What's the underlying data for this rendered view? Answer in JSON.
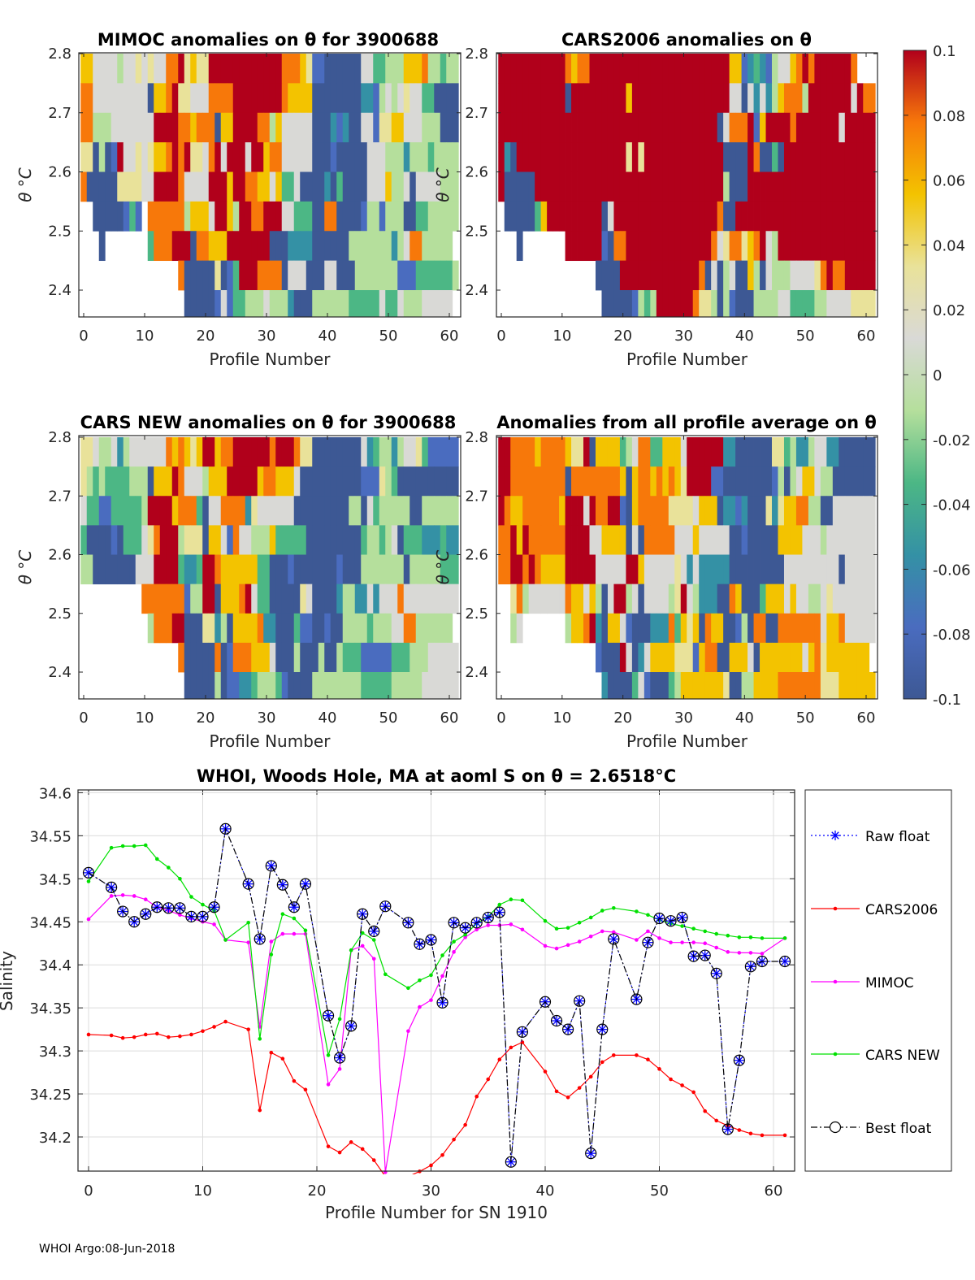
{
  "levels": {
    "0": "#3d5894",
    "1": "#4a6cbf",
    "2": "#3491a5",
    "3": "#4cb785",
    "4": "#b5df9c",
    "5": "#d9d9d6",
    "6": "#e9e29a",
    "7": "#f3c300",
    "8": "#f7780a",
    "9": "#b1001b"
  },
  "colorbar": {
    "ticks": [
      "0.1",
      "0.08",
      "0.06",
      "0.04",
      "0.02",
      "0",
      "-0.02",
      "-0.04",
      "-0.06",
      "-0.08",
      "-0.1"
    ],
    "range": [
      -0.1,
      0.1
    ]
  },
  "chart_data": [
    {
      "type": "heatmap",
      "title": "MIMOC anomalies on θ  for 3900688",
      "xlabel": "Profile Number",
      "ylabel": "θ °C",
      "xticks": [
        "0",
        "10",
        "20",
        "30",
        "40",
        "50",
        "60"
      ],
      "yticks": [
        "2.8",
        "2.7",
        "2.6",
        "2.5",
        "2.4"
      ],
      "xlim": [
        -0.8,
        61.9
      ],
      "ylim": [
        2.35,
        2.8
      ],
      "row_theta_top": [
        2.8,
        2.75,
        2.7,
        2.65,
        2.6,
        2.55,
        2.5,
        2.45,
        2.4
      ],
      "rows": [
        "77555545565655889676699999999999988876110000005533444777844344",
        "88555555555077896655588889999999987777000000002214545655330000",
        "88444555555599998878880779999884755555000212005516677555444000",
        "66040195565677898966589599959978855555000100000555444244434444",
        "80000066665599998555599979988775733500002030000555744505555444",
        "..00000131.88888847775997499889995533300880000144144400334444444",
        "...0.......38889990887779999999000222200000044444442458844444",
        "................80000060139998888055500055000444444411133333344",
        ".................00000151334445444200044444433333533544455555"
      ]
    },
    {
      "type": "heatmap",
      "title": "CARS2006 anomalies on θ",
      "xlabel": "Profile Number",
      "ylabel": "θ °C",
      "xticks": [
        "0",
        "10",
        "20",
        "30",
        "40",
        "50",
        "60"
      ],
      "yticks": [
        "2.8",
        "2.7",
        "2.6",
        "2.5",
        "2.4"
      ],
      "xlim": [
        -0.8,
        61.9
      ],
      "ylim": [
        2.35,
        2.8
      ],
      "row_theta_top": [
        2.8,
        2.75,
        2.7,
        2.65,
        2.6,
        2.55,
        2.5,
        2.45,
        2.4
      ],
      "rows": [
        "99999999999878899999999999999999999999771232145578989999998....",
        "99999999999099999999979999999999999999550525247888499999995988.",
        "99999999999999999999999999999999999905888917999989999999599999",
        "92099999999999999999969699999999999990000980030999999999999999",
        "90000099999999999999999999999999999994000999999999999999999999",
        ".00000379999999990599999999999999999800999999999999999999999999",
        "...0.......99999910889999999999999985688678954999999999999999999",
        "................00009999999999999805045007405444555568988999999",
        ".................000001434999999866404100044445533334455556666"
      ]
    },
    {
      "type": "heatmap",
      "title": "CARS NEW anomalies on θ for 3900688",
      "xlabel": "Profile Number",
      "ylabel": "θ °C",
      "xticks": [
        "0",
        "10",
        "20",
        "30",
        "40",
        "50",
        "60"
      ],
      "yticks": [
        "2.8",
        "2.7",
        "2.6",
        "2.5",
        "2.4"
      ],
      "xlim": [
        -0.8,
        61.9
      ],
      "ylim": [
        2.35,
        2.8
      ],
      "row_theta_top": [
        2.8,
        2.75,
        2.7,
        2.65,
        2.6,
        2.55,
        2.5,
        2.45,
        2.4
      ],
      "rows": [
        "66544524555555878767997889999998999866000000005234424556311111",
        "64343333444077798555477799999788777500000000001116430000000000",
        "53311333334999978883055888826555555000000000440534444400444444",
        "30000103335689994666077518554447333330000000003443450333222322",
        "44000000055599993223998777777330001000000010004444444044444333",
        "..........8888888144990777895330000065000024422525558555555555",
        "...........48889900066240777782200031100100444434445588444444",
        "................80000080188877750004000400433311111333444555555",
        ".................0000040112234443100004444444433333444445555555"
      ]
    },
    {
      "type": "heatmap",
      "title": "Anomalies from all profile average on θ",
      "xlabel": "Profile Number",
      "ylabel": "θ °C",
      "xticks": [
        "0",
        "10",
        "20",
        "30",
        "40",
        "50",
        "60"
      ],
      "yticks": [
        "2.8",
        "2.7",
        "2.6",
        "2.5",
        "2.4"
      ],
      "xlim": [
        -0.8,
        61.9
      ],
      "ylim": [
        2.35,
        2.8
      ],
      "row_theta_top": [
        2.8,
        2.75,
        2.7,
        2.65,
        2.6,
        2.55,
        2.5,
        2.45,
        2.4
      ],
      "rows": [
        "99888878888766907777345883377759999992200000066342245522000000",
        "99888888888088888888707887878769999110000000014045775440000000",
        "98778888887999598899107888886666577702212000626778844005555555",
        "88979888888999955777705088888555755555001000007777555455555555",
        "88998987777999995555599755555652522222000000000555555555055555555",
        "..6845555558775740599450555546954222008700037775755445655555555",
        "..45.......4778920775100022283767087700140880088888885778555555555",
        "................100095025777766617880077750777777757867777777",
        ".................200003510003477777776004477778888888666777777"
      ]
    },
    {
      "type": "line",
      "title": "WHOI, Woods Hole, MA at aoml S on θ = 2.6518°C",
      "xlabel": "Profile Number for SN 1910",
      "ylabel": "Salinity",
      "xlim": [
        -1,
        62
      ],
      "ylim": [
        34.155,
        34.6
      ],
      "xticks": [
        "0",
        "10",
        "20",
        "30",
        "40",
        "50",
        "60"
      ],
      "yticks": [
        "34.6",
        "34.55",
        "34.5",
        "34.45",
        "34.4",
        "34.35",
        "34.3",
        "34.25",
        "34.2"
      ],
      "grid": true,
      "legend_position": "outside-right",
      "x": [
        0,
        2,
        3,
        4,
        5,
        6,
        7,
        8,
        9,
        10,
        11,
        12,
        14,
        15,
        16,
        17,
        18,
        19,
        21,
        22,
        23,
        24,
        25,
        26,
        28,
        29,
        30,
        31,
        32,
        33,
        34,
        35,
        36,
        37,
        38,
        40,
        41,
        42,
        43,
        44,
        45,
        46,
        48,
        49,
        50,
        51,
        52,
        53,
        54,
        55,
        56,
        57,
        58,
        59,
        61
      ],
      "series": [
        {
          "name": "Raw float",
          "color": "#0000ff",
          "values": [
            34.507,
            34.49,
            34.462,
            34.45,
            34.459,
            34.467,
            34.466,
            34.466,
            34.456,
            34.456,
            34.467,
            34.558,
            34.494,
            34.43,
            34.515,
            34.493,
            34.467,
            34.494,
            34.341,
            34.292,
            34.329,
            34.459,
            34.439,
            34.468,
            34.449,
            34.424,
            34.429,
            34.356,
            34.449,
            34.443,
            34.449,
            34.455,
            34.461,
            34.171,
            34.322,
            34.357,
            34.335,
            34.325,
            34.358,
            34.181,
            34.325,
            34.43,
            34.36,
            34.426,
            34.454,
            34.451,
            34.455,
            34.41,
            34.411,
            34.39,
            34.209,
            34.289,
            34.398,
            34.404,
            34.404
          ]
        },
        {
          "name": "CARS2006",
          "color": "#ff0000",
          "values": [
            34.319,
            34.318,
            34.315,
            34.316,
            34.319,
            34.32,
            34.316,
            34.317,
            34.319,
            34.323,
            34.328,
            34.334,
            34.325,
            34.231,
            34.298,
            34.291,
            34.265,
            34.255,
            34.189,
            34.182,
            34.194,
            34.186,
            34.173,
            34.154,
            34.154,
            34.16,
            34.167,
            34.179,
            34.197,
            34.214,
            34.247,
            34.267,
            34.29,
            34.304,
            34.31,
            34.276,
            34.253,
            34.246,
            34.257,
            34.27,
            34.287,
            34.295,
            34.295,
            34.29,
            34.279,
            34.267,
            34.26,
            34.252,
            34.23,
            34.219,
            34.213,
            34.208,
            34.204,
            34.202,
            34.202
          ]
        },
        {
          "name": "MIMOC",
          "color": "#ff00ff",
          "values": [
            34.453,
            34.48,
            34.481,
            34.48,
            34.476,
            34.467,
            34.463,
            34.458,
            34.454,
            34.45,
            34.447,
            34.429,
            34.426,
            34.328,
            34.427,
            34.436,
            34.436,
            34.436,
            34.261,
            34.279,
            34.417,
            34.422,
            34.407,
            34.159,
            34.323,
            34.351,
            34.359,
            34.387,
            34.415,
            34.432,
            34.441,
            34.446,
            34.446,
            34.447,
            34.441,
            34.422,
            34.419,
            34.423,
            34.427,
            34.433,
            34.439,
            34.438,
            34.429,
            34.439,
            34.431,
            34.426,
            34.426,
            34.426,
            34.425,
            34.42,
            34.415,
            34.414,
            34.414,
            34.413,
            34.431
          ]
        },
        {
          "name": "CARS NEW",
          "color": "#00e000",
          "values": [
            34.497,
            34.536,
            34.538,
            34.538,
            34.539,
            34.523,
            34.513,
            34.5,
            34.479,
            34.47,
            34.463,
            34.429,
            34.449,
            34.314,
            34.412,
            34.459,
            34.454,
            34.44,
            34.295,
            34.337,
            34.417,
            34.437,
            34.429,
            34.389,
            34.373,
            34.382,
            34.388,
            34.411,
            34.427,
            34.435,
            34.448,
            34.456,
            34.47,
            34.476,
            34.475,
            34.451,
            34.442,
            34.443,
            34.449,
            34.455,
            34.463,
            34.466,
            34.462,
            34.458,
            34.452,
            34.448,
            34.445,
            34.442,
            34.439,
            34.436,
            34.434,
            34.432,
            34.432,
            34.431,
            34.431
          ]
        },
        {
          "name": "Best float",
          "color": "#000000",
          "values": [
            34.507,
            34.49,
            34.462,
            34.45,
            34.459,
            34.467,
            34.466,
            34.466,
            34.456,
            34.456,
            34.467,
            34.558,
            34.494,
            34.43,
            34.515,
            34.493,
            34.467,
            34.494,
            34.341,
            34.292,
            34.329,
            34.459,
            34.439,
            34.468,
            34.449,
            34.424,
            34.429,
            34.356,
            34.449,
            34.443,
            34.449,
            34.455,
            34.461,
            34.171,
            34.322,
            34.357,
            34.335,
            34.325,
            34.358,
            34.181,
            34.325,
            34.43,
            34.36,
            34.426,
            34.454,
            34.451,
            34.455,
            34.41,
            34.411,
            34.39,
            34.209,
            34.289,
            34.398,
            34.404,
            34.404
          ]
        }
      ]
    }
  ],
  "footer": "WHOI Argo:08-Jun-2018"
}
